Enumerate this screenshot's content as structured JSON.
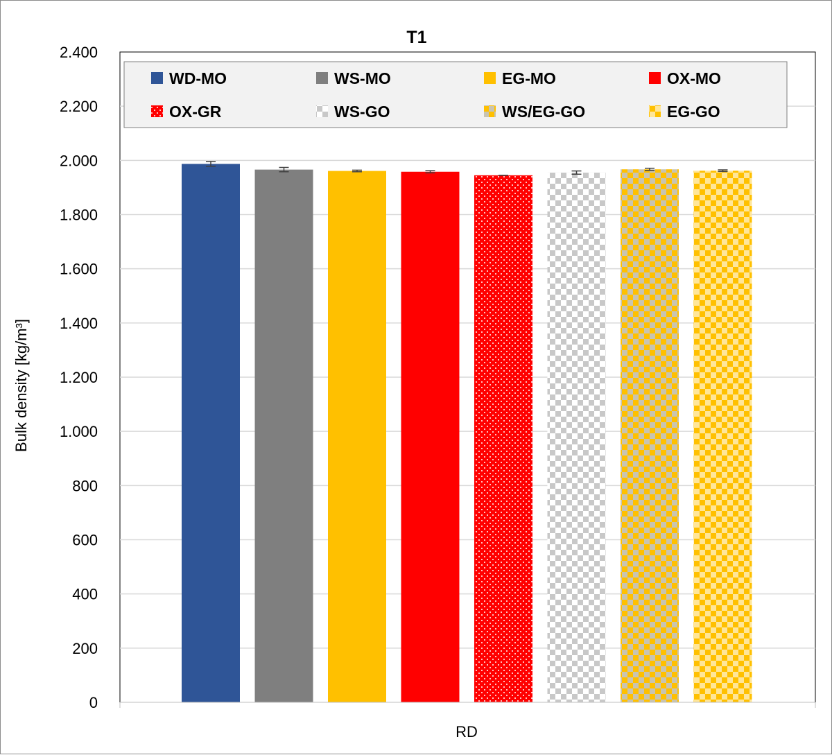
{
  "chart_data": {
    "type": "bar",
    "title": "T1",
    "xlabel": "RD",
    "ylabel": "Bulk density [kg/m³]",
    "ylim": [
      0,
      2400
    ],
    "yticks": [
      0,
      200,
      400,
      600,
      800,
      1000,
      1200,
      1400,
      1600,
      1800,
      2000,
      2200,
      2400
    ],
    "ytick_labels": [
      "0",
      "200",
      "400",
      "600",
      "800",
      "1.000",
      "1.200",
      "1.400",
      "1.600",
      "1.800",
      "2.000",
      "2.200",
      "2.400"
    ],
    "categories": [
      "RD"
    ],
    "grid": true,
    "legend_position": "top",
    "series": [
      {
        "name": "WD-MO",
        "values": [
          1987
        ],
        "error": [
          9
        ],
        "color": "#2f5597",
        "pattern": "solid"
      },
      {
        "name": "WS-MO",
        "values": [
          1966
        ],
        "error": [
          8
        ],
        "color": "#7f7f7f",
        "pattern": "solid"
      },
      {
        "name": "EG-MO",
        "values": [
          1961
        ],
        "error": [
          3
        ],
        "color": "#ffc000",
        "pattern": "solid"
      },
      {
        "name": "OX-MO",
        "values": [
          1958
        ],
        "error": [
          4
        ],
        "color": "#ff0000",
        "pattern": "solid"
      },
      {
        "name": "OX-GR",
        "values": [
          1945
        ],
        "error": [
          0
        ],
        "color": "#ff0000",
        "pattern": "dots"
      },
      {
        "name": "WS-GO",
        "values": [
          1955
        ],
        "error": [
          6
        ],
        "color": "#bfbfbf",
        "pattern": "checker"
      },
      {
        "name": "WS/EG-GO",
        "values": [
          1967
        ],
        "error": [
          4
        ],
        "color": "#ffc000",
        "pattern": "checker-gray"
      },
      {
        "name": "EG-GO",
        "values": [
          1962
        ],
        "error": [
          3
        ],
        "color": "#ffc000",
        "pattern": "checker-light"
      }
    ]
  }
}
